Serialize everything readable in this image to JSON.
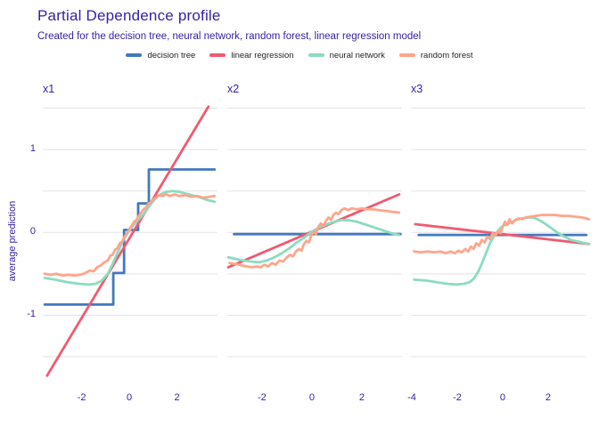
{
  "header": {
    "title": "Partial Dependence profile",
    "subtitle": "Created for the decision tree, neural network, random forest, linear regression model"
  },
  "colors": {
    "theme_text": "#371ea3",
    "grid": "#e3e3e3",
    "legend_text": "#232323",
    "decision_tree": "#4378bf",
    "linear_regression": "#f05a71",
    "neural_network": "#8bdcbe",
    "random_forest": "#ffa58c"
  },
  "legend": {
    "items": [
      {
        "key": "decision_tree",
        "label": "decision tree"
      },
      {
        "key": "linear_regression",
        "label": "linear regression"
      },
      {
        "key": "neural_network",
        "label": "neural network"
      },
      {
        "key": "random_forest",
        "label": "random forest"
      }
    ]
  },
  "axes": {
    "y_label": "average prediction",
    "y_ticks": [
      {
        "label": "1",
        "value": 1
      },
      {
        "label": "0",
        "value": 0
      },
      {
        "label": "-1",
        "value": -1
      }
    ]
  },
  "chart_data": {
    "type": "line",
    "title": "Partial Dependence profile",
    "subtitle": "Created for the decision tree, neural network, random forest, linear regression model",
    "ylabel": "average prediction",
    "ylim": [
      -1.78,
      1.55
    ],
    "gridlines": [
      -1.5,
      -1,
      -0.5,
      0,
      0.5,
      1,
      1.5
    ],
    "grid": "horizontal-only",
    "legend_position": "top-center",
    "series_order": [
      "decision_tree",
      "linear_regression",
      "neural_network",
      "random_forest"
    ],
    "panel_lefts": [
      48,
      255,
      461
    ],
    "panels": [
      {
        "label": "x1",
        "xlim": [
          -3.63,
          3.7
        ],
        "x_ticks": [
          -2,
          0,
          2
        ],
        "series": {
          "decision_tree": [
            [
              -3.55,
              -0.87
            ],
            [
              -0.67,
              -0.87
            ],
            [
              -0.67,
              -0.49
            ],
            [
              -0.22,
              -0.49
            ],
            [
              -0.22,
              0.03
            ],
            [
              0.37,
              0.03
            ],
            [
              0.37,
              0.35
            ],
            [
              0.82,
              0.35
            ],
            [
              0.82,
              0.76
            ],
            [
              3.58,
              0.76
            ]
          ],
          "linear_regression": [
            [
              -3.45,
              -1.73
            ],
            [
              3.32,
              1.52
            ]
          ],
          "neural_network": [
            [
              -3.55,
              -0.55
            ],
            [
              -3.1,
              -0.57
            ],
            [
              -2.6,
              -0.6
            ],
            [
              -2.1,
              -0.62
            ],
            [
              -1.7,
              -0.63
            ],
            [
              -1.4,
              -0.62
            ],
            [
              -1.15,
              -0.58
            ],
            [
              -0.9,
              -0.5
            ],
            [
              -0.7,
              -0.38
            ],
            [
              -0.5,
              -0.25
            ],
            [
              -0.3,
              -0.12
            ],
            [
              -0.1,
              -0.02
            ],
            [
              0.1,
              0.06
            ],
            [
              0.3,
              0.13
            ],
            [
              0.5,
              0.19
            ],
            [
              0.7,
              0.26
            ],
            [
              0.9,
              0.34
            ],
            [
              1.1,
              0.41
            ],
            [
              1.3,
              0.46
            ],
            [
              1.55,
              0.49
            ],
            [
              1.8,
              0.5
            ],
            [
              2.1,
              0.49
            ],
            [
              2.5,
              0.46
            ],
            [
              2.9,
              0.43
            ],
            [
              3.3,
              0.39
            ],
            [
              3.58,
              0.37
            ]
          ],
          "random_forest": [
            [
              -3.55,
              -0.5
            ],
            [
              -3.3,
              -0.51
            ],
            [
              -3.05,
              -0.5
            ],
            [
              -2.8,
              -0.52
            ],
            [
              -2.55,
              -0.51
            ],
            [
              -2.3,
              -0.52
            ],
            [
              -2.05,
              -0.51
            ],
            [
              -1.85,
              -0.49
            ],
            [
              -1.65,
              -0.46
            ],
            [
              -1.5,
              -0.47
            ],
            [
              -1.35,
              -0.42
            ],
            [
              -1.2,
              -0.4
            ],
            [
              -1.05,
              -0.36
            ],
            [
              -0.9,
              -0.34
            ],
            [
              -0.8,
              -0.28
            ],
            [
              -0.7,
              -0.27
            ],
            [
              -0.6,
              -0.21
            ],
            [
              -0.5,
              -0.19
            ],
            [
              -0.4,
              -0.13
            ],
            [
              -0.3,
              -0.11
            ],
            [
              -0.2,
              -0.05
            ],
            [
              -0.1,
              -0.01
            ],
            [
              0,
              0.04
            ],
            [
              0.1,
              0.08
            ],
            [
              0.2,
              0.13
            ],
            [
              0.3,
              0.15
            ],
            [
              0.4,
              0.2
            ],
            [
              0.5,
              0.24
            ],
            [
              0.6,
              0.28
            ],
            [
              0.7,
              0.3
            ],
            [
              0.8,
              0.35
            ],
            [
              0.9,
              0.36
            ],
            [
              1.0,
              0.4
            ],
            [
              1.1,
              0.42
            ],
            [
              1.25,
              0.45
            ],
            [
              1.4,
              0.44
            ],
            [
              1.55,
              0.46
            ],
            [
              1.7,
              0.44
            ],
            [
              1.9,
              0.46
            ],
            [
              2.1,
              0.44
            ],
            [
              2.35,
              0.45
            ],
            [
              2.6,
              0.43
            ],
            [
              2.85,
              0.44
            ],
            [
              3.1,
              0.42
            ],
            [
              3.35,
              0.43
            ],
            [
              3.58,
              0.44
            ]
          ]
        }
      },
      {
        "label": "x2",
        "xlim": [
          -3.39,
          3.61
        ],
        "x_ticks": [
          -2,
          0,
          2
        ],
        "series": {
          "decision_tree": [
            [
              -3.12,
              -0.02
            ],
            [
              3.55,
              -0.02
            ]
          ],
          "linear_regression": [
            [
              -3.35,
              -0.42
            ],
            [
              3.5,
              0.46
            ]
          ],
          "neural_network": [
            [
              -3.35,
              -0.3
            ],
            [
              -2.9,
              -0.33
            ],
            [
              -2.5,
              -0.35
            ],
            [
              -2.1,
              -0.36
            ],
            [
              -1.8,
              -0.34
            ],
            [
              -1.5,
              -0.3
            ],
            [
              -1.2,
              -0.25
            ],
            [
              -0.9,
              -0.19
            ],
            [
              -0.6,
              -0.12
            ],
            [
              -0.3,
              -0.06
            ],
            [
              0,
              0.01
            ],
            [
              0.3,
              0.06
            ],
            [
              0.6,
              0.1
            ],
            [
              0.9,
              0.13
            ],
            [
              1.2,
              0.15
            ],
            [
              1.5,
              0.145
            ],
            [
              1.8,
              0.13
            ],
            [
              2.1,
              0.1
            ],
            [
              2.5,
              0.06
            ],
            [
              2.9,
              0.02
            ],
            [
              3.2,
              -0.01
            ],
            [
              3.5,
              -0.03
            ]
          ],
          "random_forest": [
            [
              -3.3,
              -0.37
            ],
            [
              -3.05,
              -0.38
            ],
            [
              -2.8,
              -0.4
            ],
            [
              -2.6,
              -0.41
            ],
            [
              -2.4,
              -0.42
            ],
            [
              -2.2,
              -0.41
            ],
            [
              -2.05,
              -0.42
            ],
            [
              -1.9,
              -0.39
            ],
            [
              -1.75,
              -0.41
            ],
            [
              -1.6,
              -0.37
            ],
            [
              -1.45,
              -0.39
            ],
            [
              -1.3,
              -0.34
            ],
            [
              -1.15,
              -0.35
            ],
            [
              -1.0,
              -0.3
            ],
            [
              -0.88,
              -0.27
            ],
            [
              -0.76,
              -0.29
            ],
            [
              -0.64,
              -0.23
            ],
            [
              -0.52,
              -0.2
            ],
            [
              -0.42,
              -0.22
            ],
            [
              -0.32,
              -0.14
            ],
            [
              -0.22,
              -0.1
            ],
            [
              -0.12,
              -0.12
            ],
            [
              -0.02,
              -0.03
            ],
            [
              0.08,
              0.01
            ],
            [
              0.16,
              -0.02
            ],
            [
              0.26,
              0.07
            ],
            [
              0.36,
              0.11
            ],
            [
              0.46,
              0.08
            ],
            [
              0.56,
              0.14
            ],
            [
              0.66,
              0.18
            ],
            [
              0.76,
              0.15
            ],
            [
              0.86,
              0.21
            ],
            [
              0.96,
              0.24
            ],
            [
              1.06,
              0.22
            ],
            [
              1.18,
              0.27
            ],
            [
              1.3,
              0.29
            ],
            [
              1.45,
              0.27
            ],
            [
              1.6,
              0.29
            ],
            [
              1.8,
              0.28
            ],
            [
              2.0,
              0.29
            ],
            [
              2.2,
              0.28
            ],
            [
              2.45,
              0.28
            ],
            [
              2.7,
              0.27
            ],
            [
              2.95,
              0.26
            ],
            [
              3.2,
              0.25
            ],
            [
              3.5,
              0.24
            ]
          ]
        }
      },
      {
        "label": "x3",
        "xlim": [
          -4.04,
          3.65
        ],
        "x_ticks": [
          -4,
          -2,
          0,
          2
        ],
        "series": {
          "decision_tree": [
            [
              -3.7,
              -0.03
            ],
            [
              3.68,
              -0.03
            ]
          ],
          "linear_regression": [
            [
              -3.85,
              0.1
            ],
            [
              3.8,
              -0.14
            ]
          ],
          "neural_network": [
            [
              -3.9,
              -0.57
            ],
            [
              -3.4,
              -0.58
            ],
            [
              -2.9,
              -0.6
            ],
            [
              -2.45,
              -0.62
            ],
            [
              -2.05,
              -0.63
            ],
            [
              -1.7,
              -0.62
            ],
            [
              -1.45,
              -0.6
            ],
            [
              -1.25,
              -0.55
            ],
            [
              -1.05,
              -0.46
            ],
            [
              -0.88,
              -0.35
            ],
            [
              -0.72,
              -0.24
            ],
            [
              -0.56,
              -0.13
            ],
            [
              -0.4,
              -0.05
            ],
            [
              -0.24,
              0.01
            ],
            [
              -0.08,
              0.06
            ],
            [
              0.1,
              0.09
            ],
            [
              0.35,
              0.12
            ],
            [
              0.6,
              0.15
            ],
            [
              0.85,
              0.17
            ],
            [
              1.1,
              0.18
            ],
            [
              1.35,
              0.18
            ],
            [
              1.6,
              0.15
            ],
            [
              1.85,
              0.11
            ],
            [
              2.1,
              0.06
            ],
            [
              2.4,
              0.0
            ],
            [
              2.7,
              -0.05
            ],
            [
              3.0,
              -0.09
            ],
            [
              3.3,
              -0.11
            ],
            [
              3.6,
              -0.13
            ],
            [
              3.8,
              -0.14
            ]
          ],
          "random_forest": [
            [
              -3.9,
              -0.23
            ],
            [
              -3.6,
              -0.24
            ],
            [
              -3.3,
              -0.23
            ],
            [
              -3.0,
              -0.24
            ],
            [
              -2.75,
              -0.23
            ],
            [
              -2.5,
              -0.25
            ],
            [
              -2.3,
              -0.23
            ],
            [
              -2.1,
              -0.25
            ],
            [
              -1.95,
              -0.22
            ],
            [
              -1.8,
              -0.24
            ],
            [
              -1.65,
              -0.2
            ],
            [
              -1.52,
              -0.23
            ],
            [
              -1.4,
              -0.17
            ],
            [
              -1.28,
              -0.2
            ],
            [
              -1.16,
              -0.13
            ],
            [
              -1.04,
              -0.16
            ],
            [
              -0.92,
              -0.09
            ],
            [
              -0.8,
              -0.12
            ],
            [
              -0.68,
              -0.05
            ],
            [
              -0.56,
              -0.08
            ],
            [
              -0.44,
              -0.01
            ],
            [
              -0.32,
              -0.04
            ],
            [
              -0.2,
              0.02
            ],
            [
              -0.1,
              -0.01
            ],
            [
              0.0,
              0.07
            ],
            [
              0.1,
              0.13
            ],
            [
              0.2,
              0.09
            ],
            [
              0.3,
              0.16
            ],
            [
              0.42,
              0.11
            ],
            [
              0.55,
              0.15
            ],
            [
              0.7,
              0.17
            ],
            [
              0.85,
              0.16
            ],
            [
              1.0,
              0.18
            ],
            [
              1.2,
              0.19
            ],
            [
              1.45,
              0.2
            ],
            [
              1.7,
              0.21
            ],
            [
              2.0,
              0.21
            ],
            [
              2.3,
              0.21
            ],
            [
              2.6,
              0.2
            ],
            [
              2.9,
              0.2
            ],
            [
              3.2,
              0.19
            ],
            [
              3.5,
              0.18
            ],
            [
              3.8,
              0.16
            ]
          ]
        }
      }
    ]
  }
}
